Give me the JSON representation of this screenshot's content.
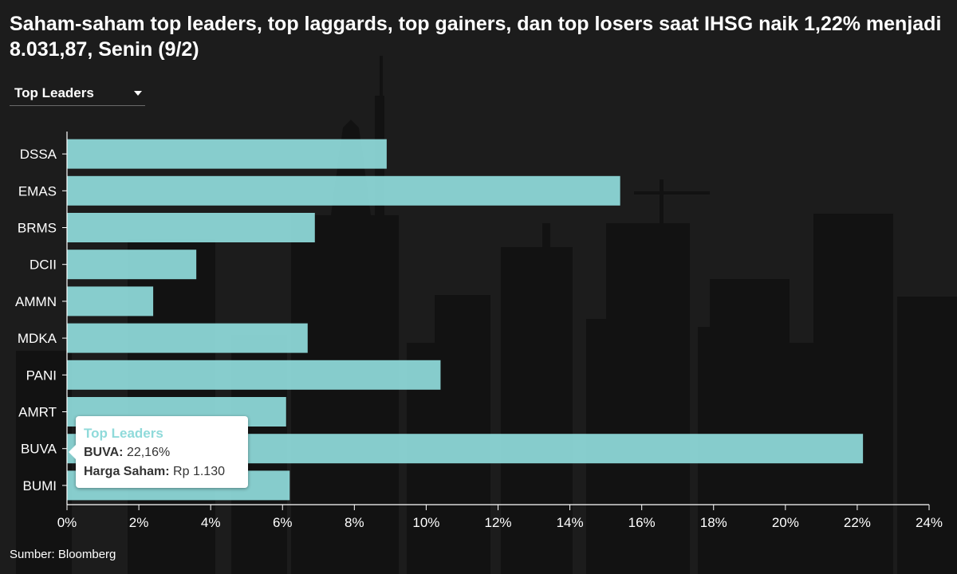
{
  "title": "Saham-saham top leaders, top laggards, top gainers, dan top losers saat IHSG naik 1,22% menjadi 8.031,87, Senin (9/2)",
  "dropdown": {
    "selected": "Top Leaders"
  },
  "tooltip": {
    "title": "Top Leaders",
    "line1_label": "BUVA:",
    "line1_value": "22,16%",
    "line2_label": "Harga Saham:",
    "line2_value": "Rp 1.130"
  },
  "source": "Sumber: Bloomberg",
  "colors": {
    "bar": "#8fdada",
    "background": "#1c1c1c",
    "axis": "#ffffff"
  },
  "chart_data": {
    "type": "bar",
    "orientation": "horizontal",
    "categories": [
      "DSSA",
      "EMAS",
      "BRMS",
      "DCII",
      "AMMN",
      "MDKA",
      "PANI",
      "AMRT",
      "BUVA",
      "BUMI"
    ],
    "values": [
      8.9,
      15.4,
      6.9,
      3.6,
      2.4,
      6.7,
      10.4,
      6.1,
      22.16,
      6.2
    ],
    "xlim": [
      0,
      24
    ],
    "xticks": [
      0,
      2,
      4,
      6,
      8,
      10,
      12,
      14,
      16,
      18,
      20,
      22,
      24
    ],
    "xtick_labels": [
      "0%",
      "2%",
      "4%",
      "6%",
      "8%",
      "10%",
      "12%",
      "14%",
      "16%",
      "18%",
      "20%",
      "22%",
      "24%"
    ],
    "series_name": "Top Leaders",
    "highlighted": "BUVA"
  }
}
